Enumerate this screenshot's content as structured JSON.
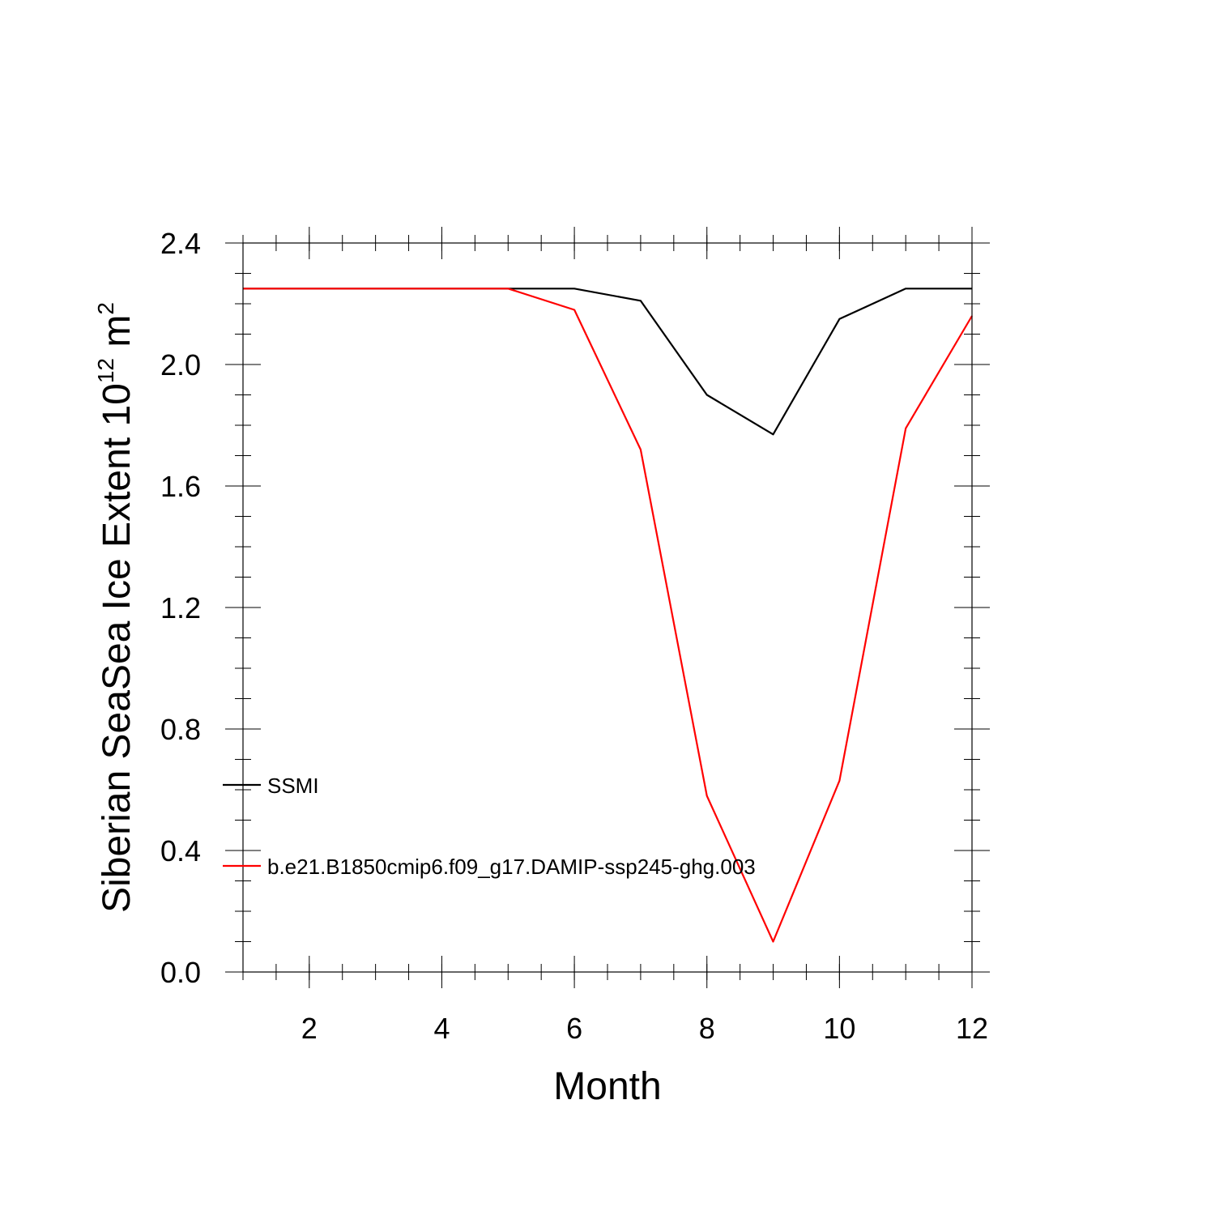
{
  "chart_data": {
    "type": "line",
    "xlabel": "Month",
    "ylabel": {
      "main": "Siberian SeaSea Ice Extent 10",
      "exponent": "12",
      "unit": " m",
      "unit_exponent": "2"
    },
    "xlim": [
      1,
      12
    ],
    "ylim": [
      0,
      2.4
    ],
    "x_ticks": [
      2,
      4,
      6,
      8,
      10,
      12
    ],
    "x_tick_labels": [
      "2",
      "4",
      "6",
      "8",
      "10",
      "12"
    ],
    "y_ticks": [
      0,
      0.4,
      0.8,
      1.2,
      1.6,
      2.0,
      2.4
    ],
    "y_tick_labels": [
      "0.0",
      "0.4",
      "0.8",
      "1.2",
      "1.6",
      "2.0",
      "2.4"
    ],
    "grid": false,
    "legend_position": "left, inside plot",
    "x": [
      1,
      2,
      3,
      4,
      5,
      6,
      7,
      8,
      9,
      10,
      11,
      12
    ],
    "series": [
      {
        "name": "SSMI",
        "color": "#000000",
        "values": [
          2.25,
          2.25,
          2.25,
          2.25,
          2.25,
          2.25,
          2.21,
          1.9,
          1.77,
          2.15,
          2.25,
          2.25
        ]
      },
      {
        "name": "b.e21.B1850cmip6.f09_g17.DAMIP-ssp245-ghg.003",
        "color": "#ff0000",
        "values": [
          2.25,
          2.25,
          2.25,
          2.25,
          2.25,
          2.18,
          1.72,
          0.58,
          0.1,
          0.63,
          1.79,
          2.16
        ]
      }
    ]
  }
}
